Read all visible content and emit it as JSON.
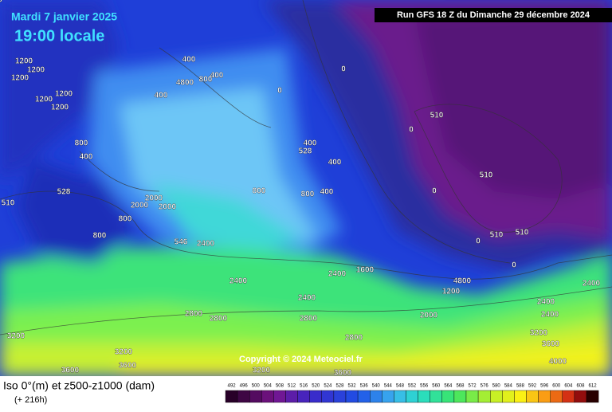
{
  "header": {
    "date": "Mardi 7 janvier 2025",
    "time": "19:00 locale",
    "run": "Run GFS 18 Z du Dimanche 29 décembre 2024"
  },
  "footer": {
    "title": "Iso 0°(m) et z500-z1000 (dam)",
    "lead": "(+ 216h)",
    "copyright": "Copyright © 2024 Meteociel.fr"
  },
  "colorbar": {
    "levels": [
      492,
      496,
      500,
      504,
      508,
      512,
      516,
      520,
      524,
      528,
      532,
      536,
      540,
      544,
      548,
      552,
      556,
      560,
      564,
      568,
      572,
      576,
      580,
      584,
      588,
      592,
      596,
      600,
      604,
      608,
      612
    ]
  },
  "map": {
    "labels": [
      "1200",
      "1200",
      "1200",
      "1200",
      "1200",
      "1200",
      "800",
      "400",
      "400",
      "400",
      "800",
      "4800",
      "400",
      "2000",
      "2000",
      "2000",
      "800",
      "800",
      "2400",
      "2400",
      "2400",
      "2800",
      "2800",
      "2800",
      "2800",
      "3200",
      "3200",
      "3600",
      "3600",
      "3200",
      "3600",
      "2000",
      "1200",
      "4800",
      "2400",
      "1600",
      "400",
      "400",
      "800",
      "800",
      "400",
      "2400",
      "2400",
      "2400",
      "3200",
      "3600",
      "4000",
      "510",
      "510",
      "510",
      "510",
      "528",
      "528",
      "510",
      "546",
      "0",
      "0",
      "0",
      "0",
      "0",
      "0",
      "0"
    ]
  }
}
